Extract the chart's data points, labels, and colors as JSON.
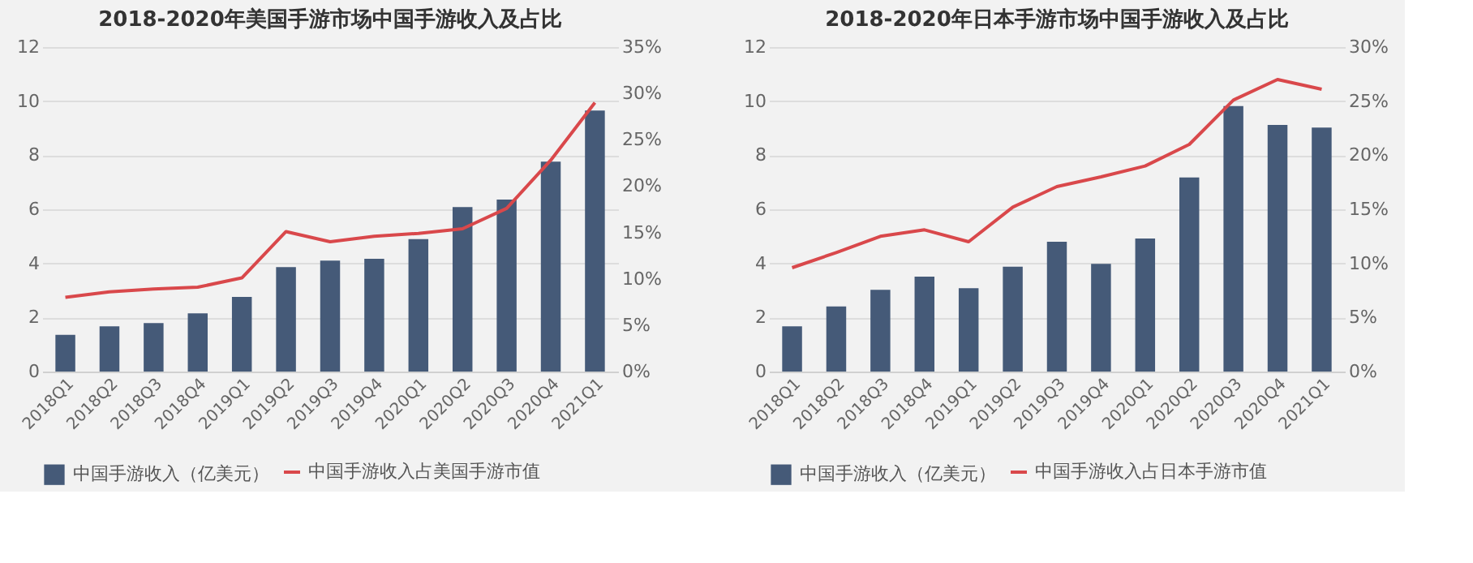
{
  "chart_data": [
    {
      "type": "bar",
      "title": "2018-2020年美国手游市场中国手游收入及占比",
      "categories": [
        "2018Q1",
        "2018Q2",
        "2018Q3",
        "2018Q4",
        "2019Q1",
        "2019Q2",
        "2019Q3",
        "2019Q4",
        "2020Q1",
        "2020Q2",
        "2020Q3",
        "2020Q4",
        "2021Q1"
      ],
      "series": [
        {
          "name": "中国手游收入（亿美元）",
          "color": "#455a78",
          "values": [
            1.36,
            1.67,
            1.79,
            2.15,
            2.76,
            3.86,
            4.1,
            4.17,
            4.9,
            6.08,
            6.36,
            7.76,
            9.65
          ]
        },
        {
          "name": "中国手游收入占美国手游市值",
          "type": "line",
          "axis": "y2",
          "color": "#d9484b",
          "values": [
            8.0,
            8.6,
            8.9,
            9.1,
            10.1,
            15.1,
            14.0,
            14.6,
            14.9,
            15.4,
            17.6,
            22.8,
            29.0
          ]
        }
      ],
      "ylim": [
        0,
        12
      ],
      "yticks": [
        0,
        2,
        4,
        6,
        8,
        10,
        12
      ],
      "y2lim": [
        0,
        35
      ],
      "y2ticks": [
        {
          "value": 0,
          "label": "0%"
        },
        {
          "value": 5,
          "label": "5%"
        },
        {
          "value": 10,
          "label": "10%"
        },
        {
          "value": 15,
          "label": "15%"
        },
        {
          "value": 20,
          "label": "20%"
        },
        {
          "value": 25,
          "label": "25%"
        },
        {
          "value": 30,
          "label": "30%"
        },
        {
          "value": 35,
          "label": "35%"
        }
      ],
      "grid": "y",
      "legend": "bottom"
    },
    {
      "type": "bar",
      "title": "2018-2020年日本手游市场中国手游收入及占比",
      "categories": [
        "2018Q1",
        "2018Q2",
        "2018Q3",
        "2018Q4",
        "2019Q1",
        "2019Q2",
        "2019Q3",
        "2019Q4",
        "2020Q1",
        "2020Q2",
        "2020Q3",
        "2020Q4",
        "2021Q1"
      ],
      "series": [
        {
          "name": "中国手游收入（亿美元）",
          "color": "#455a78",
          "values": [
            1.67,
            2.41,
            3.02,
            3.51,
            3.08,
            3.88,
            4.8,
            3.98,
            4.92,
            7.18,
            9.82,
            9.12,
            9.02
          ]
        },
        {
          "name": "中国手游收入占日本手游市值",
          "type": "line",
          "axis": "y2",
          "color": "#d9484b",
          "values": [
            9.6,
            11.0,
            12.5,
            13.1,
            12.0,
            15.2,
            17.1,
            18.0,
            19.0,
            21.0,
            25.1,
            27.0,
            26.1
          ]
        }
      ],
      "ylim": [
        0,
        12
      ],
      "yticks": [
        0,
        2,
        4,
        6,
        8,
        10,
        12
      ],
      "y2lim": [
        0,
        30
      ],
      "y2ticks": [
        {
          "value": 0,
          "label": "0%"
        },
        {
          "value": 5,
          "label": "5%"
        },
        {
          "value": 10,
          "label": "10%"
        },
        {
          "value": 15,
          "label": "15%"
        },
        {
          "value": 20,
          "label": "20%"
        },
        {
          "value": 25,
          "label": "25%"
        },
        {
          "value": 30,
          "label": "30%"
        }
      ],
      "grid": "y",
      "legend": "bottom"
    }
  ]
}
